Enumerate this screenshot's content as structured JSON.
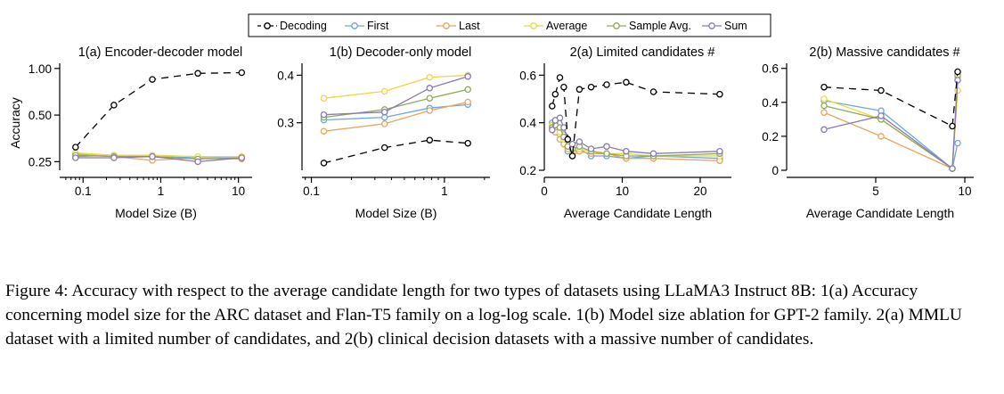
{
  "legend": [
    {
      "name": "Decoding",
      "color": "#000000",
      "dash": true
    },
    {
      "name": "First",
      "color": "#6fa6dc",
      "dash": false
    },
    {
      "name": "Last",
      "color": "#e8a55c",
      "dash": false
    },
    {
      "name": "Average",
      "color": "#e8d84a",
      "dash": false
    },
    {
      "name": "Sample Avg.",
      "color": "#8faa55",
      "dash": false
    },
    {
      "name": "Sum",
      "color": "#8a78b8",
      "dash": false
    }
  ],
  "ylabel": "Accuracy",
  "chart_data": [
    {
      "type": "line",
      "title": "1(a) Encoder-decoder model",
      "xlabel": "Model Size (B)",
      "xscale": "log",
      "xlim": [
        0.05,
        15
      ],
      "yscale": "log",
      "ylim": [
        0.22,
        1.08
      ],
      "xticks": [
        0.1,
        1,
        10
      ],
      "xticklabels": [
        "0.1",
        "1",
        "10"
      ],
      "yticks": [
        0.25,
        0.5,
        1.0
      ],
      "yticklabels": [
        "0.25",
        "0.50",
        "1.00"
      ],
      "x": [
        0.08,
        0.25,
        0.78,
        3,
        11
      ],
      "series": [
        {
          "name": "Decoding",
          "values": [
            0.31,
            0.58,
            0.85,
            0.93,
            0.94
          ]
        },
        {
          "name": "First",
          "values": [
            0.27,
            0.275,
            0.27,
            0.265,
            0.265
          ]
        },
        {
          "name": "Last",
          "values": [
            0.28,
            0.27,
            0.255,
            0.265,
            0.26
          ]
        },
        {
          "name": "Average",
          "values": [
            0.285,
            0.275,
            0.275,
            0.27,
            0.27
          ]
        },
        {
          "name": "Sample Avg.",
          "values": [
            0.275,
            0.27,
            0.27,
            0.26,
            0.265
          ]
        },
        {
          "name": "Sum",
          "values": [
            0.265,
            0.265,
            0.27,
            0.25,
            0.265
          ]
        }
      ]
    },
    {
      "type": "line",
      "title": "1(b) Decoder-only model",
      "xlabel": "Model Size (B)",
      "xscale": "log",
      "xlim": [
        0.085,
        2.2
      ],
      "yscale": "log",
      "ylim": [
        0.225,
        0.43
      ],
      "xticks": [
        0.1,
        1
      ],
      "xticklabels": [
        "0.1",
        "1"
      ],
      "yticks": [
        0.3,
        0.4
      ],
      "yticklabels": [
        "0.3",
        "0.4"
      ],
      "x": [
        0.124,
        0.355,
        0.774,
        1.5
      ],
      "series": [
        {
          "name": "Decoding",
          "values": [
            0.235,
            0.258,
            0.27,
            0.265
          ]
        },
        {
          "name": "First",
          "values": [
            0.305,
            0.31,
            0.328,
            0.335
          ]
        },
        {
          "name": "Last",
          "values": [
            0.285,
            0.298,
            0.323,
            0.34
          ]
        },
        {
          "name": "Average",
          "values": [
            0.348,
            0.363,
            0.395,
            0.4
          ]
        },
        {
          "name": "Sample Avg.",
          "values": [
            0.31,
            0.325,
            0.348,
            0.367
          ]
        },
        {
          "name": "Sum",
          "values": [
            0.315,
            0.32,
            0.37,
            0.397
          ]
        }
      ]
    },
    {
      "type": "line",
      "title": "2(a) Limited candidates #",
      "xlabel": "Average Candidate Length",
      "xscale": "linear",
      "xlim": [
        0,
        24
      ],
      "yscale": "linear",
      "ylim": [
        0.2,
        0.65
      ],
      "xticks": [
        0,
        10,
        20
      ],
      "xticklabels": [
        "0",
        "10",
        "20"
      ],
      "yticks": [
        0.2,
        0.4,
        0.6
      ],
      "yticklabels": [
        "0.2",
        "0.4",
        "0.6"
      ],
      "x": [
        1,
        1.4,
        2,
        2.5,
        3,
        3.6,
        4.5,
        6,
        8,
        10.5,
        14,
        22.5
      ],
      "series": [
        {
          "name": "Decoding",
          "values": [
            0.47,
            0.52,
            0.59,
            0.55,
            0.33,
            0.26,
            0.54,
            0.55,
            0.56,
            0.57,
            0.53,
            0.52
          ]
        },
        {
          "name": "First",
          "values": [
            0.4,
            0.41,
            0.37,
            0.35,
            0.28,
            0.27,
            0.29,
            0.26,
            0.26,
            0.25,
            0.26,
            0.25
          ]
        },
        {
          "name": "Last",
          "values": [
            0.38,
            0.36,
            0.33,
            0.31,
            0.29,
            0.26,
            0.28,
            0.27,
            0.27,
            0.25,
            0.25,
            0.24
          ]
        },
        {
          "name": "Average",
          "values": [
            0.39,
            0.4,
            0.36,
            0.33,
            0.3,
            0.28,
            0.29,
            0.28,
            0.27,
            0.27,
            0.26,
            0.26
          ]
        },
        {
          "name": "Sample Avg.",
          "values": [
            0.38,
            0.39,
            0.38,
            0.34,
            0.3,
            0.29,
            0.3,
            0.28,
            0.27,
            0.26,
            0.26,
            0.27
          ]
        },
        {
          "name": "Sum",
          "values": [
            0.37,
            0.41,
            0.42,
            0.38,
            0.33,
            0.31,
            0.32,
            0.29,
            0.3,
            0.28,
            0.27,
            0.28
          ]
        }
      ]
    },
    {
      "type": "line",
      "title": "2(b) Massive candidates #",
      "xlabel": "Average Candidate Length",
      "xscale": "linear",
      "xlim": [
        0,
        10.5
      ],
      "yscale": "linear",
      "ylim": [
        0,
        0.63
      ],
      "xticks": [
        5,
        10
      ],
      "xticklabels": [
        "5",
        "10"
      ],
      "yticks": [
        0,
        0.2,
        0.4,
        0.6
      ],
      "yticklabels": [
        "0",
        "0.2",
        "0.4",
        "0.6"
      ],
      "x": [
        2.1,
        5.3,
        9.3,
        9.6
      ],
      "series": [
        {
          "name": "Decoding",
          "values": [
            0.49,
            0.47,
            0.26,
            0.58
          ]
        },
        {
          "name": "First",
          "values": [
            0.41,
            0.35,
            0.01,
            0.16
          ]
        },
        {
          "name": "Last",
          "values": [
            0.34,
            0.2,
            0.01,
            0.55
          ]
        },
        {
          "name": "Average",
          "values": [
            0.42,
            0.3,
            0.01,
            0.47
          ]
        },
        {
          "name": "Sample Avg.",
          "values": [
            0.38,
            0.3,
            0.01,
            0.56
          ]
        },
        {
          "name": "Sum",
          "values": [
            0.24,
            0.32,
            0.01,
            0.53
          ]
        }
      ]
    }
  ],
  "caption": "Figure 4: Accuracy with respect to the average candidate length for two types of datasets using LLaMA3 Instruct 8B: 1(a) Accuracy concerning model size for the ARC dataset and Flan-T5 family on a log-log scale. 1(b) Model size ablation for GPT-2 family. 2(a) MMLU dataset with a limited number of candidates, and 2(b) clinical decision datasets with a massive number of candidates."
}
